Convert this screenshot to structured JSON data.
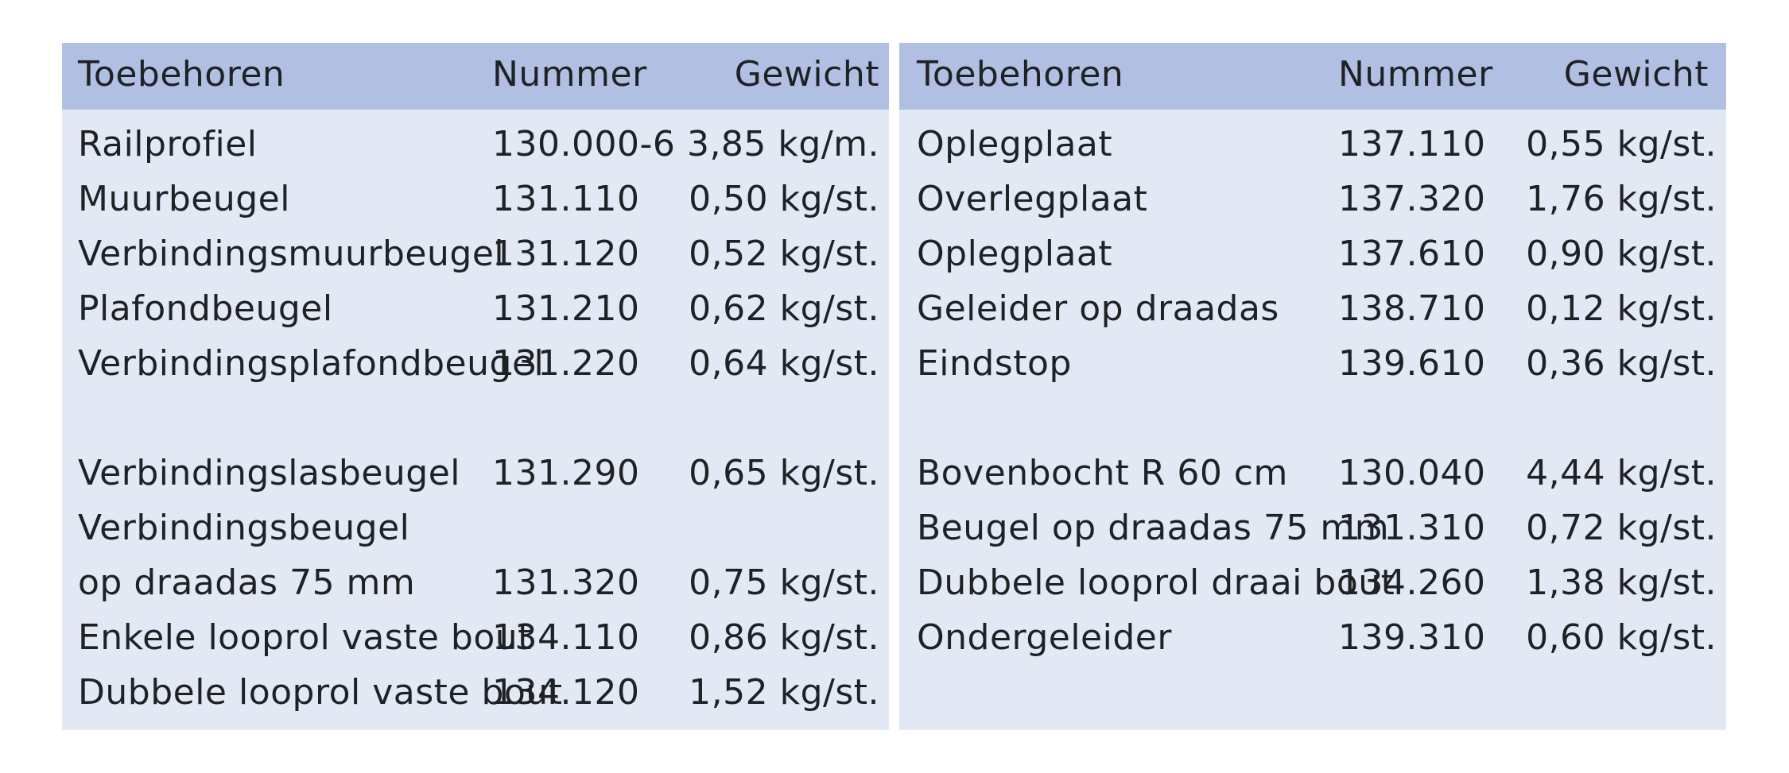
{
  "left": {
    "headers": {
      "item": "Toebehoren",
      "number": "Nummer",
      "weight": "Gewicht"
    },
    "rows": [
      {
        "item": "Railprofiel",
        "number": "130.000-6",
        "weight": "3,85 kg/m."
      },
      {
        "item": "Muurbeugel",
        "number": "131.110",
        "weight": "0,50 kg/st."
      },
      {
        "item": "Verbindingsmuurbeugel",
        "number": "131.120",
        "weight": "0,52 kg/st."
      },
      {
        "item": "Plafondbeugel",
        "number": "131.210",
        "weight": "0,62 kg/st."
      },
      {
        "item": "Verbindingsplafondbeugel",
        "number": "131.220",
        "weight": "0,64 kg/st."
      },
      {
        "item": "",
        "number": "",
        "weight": ""
      },
      {
        "item": "Verbindingslasbeugel",
        "number": "131.290",
        "weight": "0,65 kg/st."
      },
      {
        "item": "Verbindingsbeugel",
        "number": "",
        "weight": ""
      },
      {
        "item": "op draadas 75 mm",
        "number": "131.320",
        "weight": "0,75 kg/st."
      },
      {
        "item": "Enkele looprol vaste bout",
        "number": "134.110",
        "weight": "0,86 kg/st."
      },
      {
        "item": "Dubbele looprol vaste bout",
        "number": "134.120",
        "weight": "1,52 kg/st."
      }
    ]
  },
  "right": {
    "headers": {
      "item": "Toebehoren",
      "number": "Nummer",
      "weight": "Gewicht"
    },
    "rows": [
      {
        "item": "Oplegplaat",
        "number": "137.110",
        "weight": "0,55 kg/st."
      },
      {
        "item": "Overlegplaat",
        "number": "137.320",
        "weight": "1,76 kg/st."
      },
      {
        "item": "Oplegplaat",
        "number": "137.610",
        "weight": "0,90 kg/st."
      },
      {
        "item": "Geleider op draadas",
        "number": "138.710",
        "weight": "0,12 kg/st."
      },
      {
        "item": "Eindstop",
        "number": "139.610",
        "weight": "0,36 kg/st."
      },
      {
        "item": "",
        "number": "",
        "weight": ""
      },
      {
        "item": "Bovenbocht R 60 cm",
        "number": "130.040",
        "weight": "4,44 kg/st."
      },
      {
        "item": "Beugel op draadas 75 mm",
        "number": "131.310",
        "weight": "0,72 kg/st."
      },
      {
        "item": "Dubbele looprol draai bout",
        "number": "134.260",
        "weight": "1,38 kg/st."
      },
      {
        "item": "Ondergeleider",
        "number": "139.310",
        "weight": "0,60 kg/st."
      }
    ]
  }
}
